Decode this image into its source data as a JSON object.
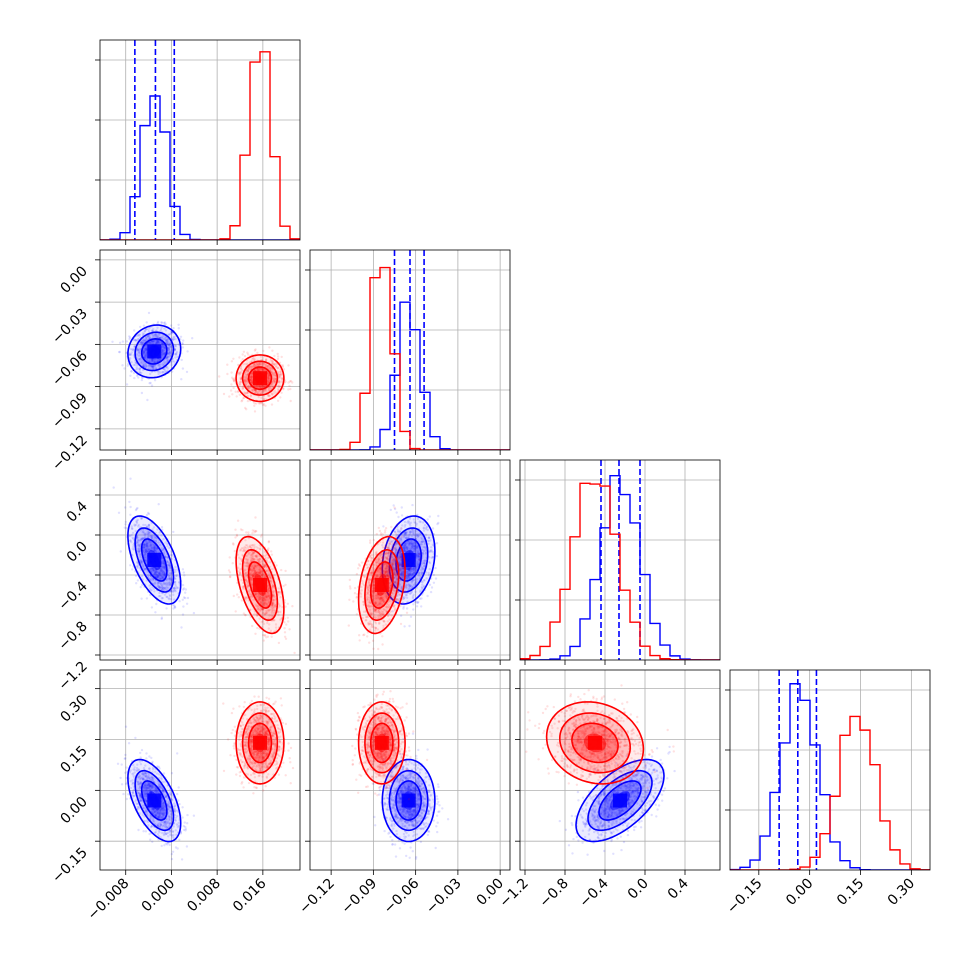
{
  "chart_data": {
    "type": "corner",
    "grid": true,
    "parameters": [
      {
        "range": [
          -0.0125,
          0.0225
        ],
        "ticks": [
          -0.008,
          0.0,
          0.008,
          0.016
        ],
        "tick_labels": [
          "−0.008",
          "0.000",
          "0.008",
          "0.016"
        ]
      },
      {
        "range": [
          -0.135,
          0.007
        ],
        "ticks": [
          -0.12,
          -0.09,
          -0.06,
          -0.03,
          0.0
        ],
        "tick_labels": [
          "−0.12",
          "−0.09",
          "−0.06",
          "−0.03",
          "0.00"
        ]
      },
      {
        "range": [
          -1.25,
          0.75
        ],
        "ticks": [
          -1.2,
          -0.8,
          -0.4,
          0.0,
          0.4
        ],
        "tick_labels": [
          "−1.2",
          "−0.8",
          "−0.4",
          "0.0",
          "0.4"
        ]
      },
      {
        "range": [
          -0.235,
          0.355
        ],
        "ticks": [
          -0.15,
          0.0,
          0.15,
          0.3
        ],
        "tick_labels": [
          "−0.15",
          "0.00",
          "0.15",
          "0.30"
        ]
      }
    ],
    "y_tick_labels": {
      "row1": [
        "0.00",
        "−0.03",
        "−0.06",
        "−0.09",
        "−0.12"
      ],
      "row2": [
        "0.4",
        "0.0",
        "−0.4",
        "−0.8",
        "−1.2"
      ],
      "row3": [
        "0.30",
        "0.15",
        "0.00",
        "−0.15"
      ]
    },
    "series": [
      {
        "color": "#0000ff",
        "mean": [
          -0.003,
          -0.065,
          -0.25,
          -0.03
        ],
        "std": [
          0.0021,
          0.0085,
          0.2,
          0.055
        ],
        "correlations": [
          [
            0,
            2,
            -0.55
          ],
          [
            0,
            3,
            -0.55
          ],
          [
            2,
            3,
            0.6
          ],
          [
            1,
            2,
            0.2
          ],
          [
            0,
            1,
            0.1
          ],
          [
            1,
            3,
            0.0
          ]
        ],
        "quantiles": [
          [
            -0.0064,
            -0.0028,
            0.0005
          ],
          [
            -0.075,
            -0.064,
            -0.054
          ],
          [
            -0.44,
            -0.26,
            -0.05
          ],
          [
            -0.09,
            -0.035,
            0.02
          ]
        ],
        "hist_peak": [
          0.75,
          0.77,
          0.96,
          0.97
        ]
      },
      {
        "color": "#ff0000",
        "mean": [
          0.0155,
          -0.084,
          -0.5,
          0.14
        ],
        "std": [
          0.0019,
          0.0075,
          0.22,
          0.055
        ],
        "correlations": [
          [
            0,
            2,
            -0.5
          ],
          [
            0,
            3,
            0.0
          ],
          [
            2,
            3,
            -0.15
          ],
          [
            1,
            2,
            0.3
          ],
          [
            0,
            1,
            0.0
          ],
          [
            1,
            3,
            0.0
          ]
        ],
        "quantiles": [],
        "hist_peak": [
          0.98,
          0.95,
          0.92,
          0.8
        ]
      }
    ]
  }
}
